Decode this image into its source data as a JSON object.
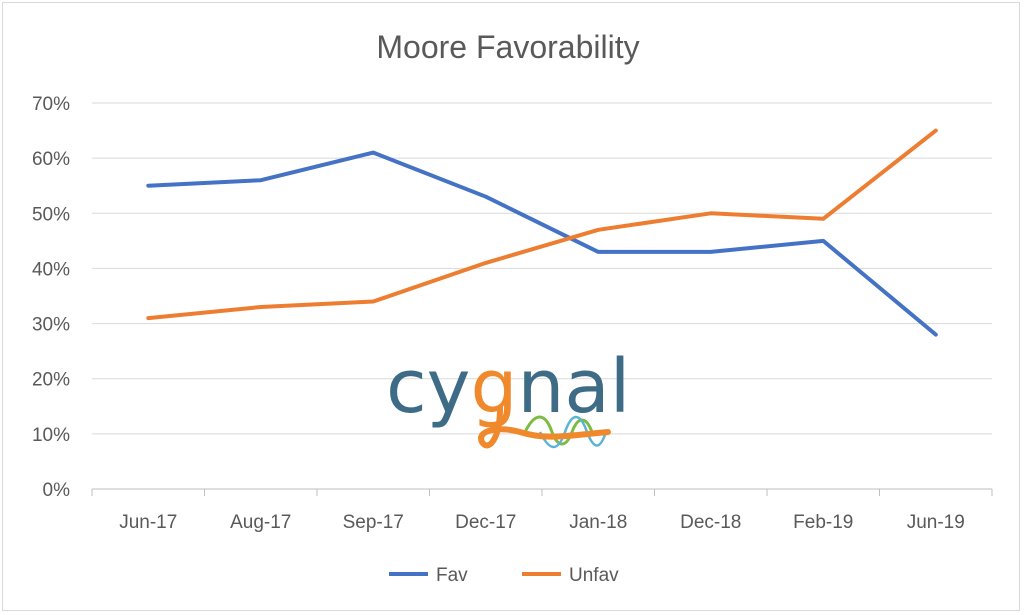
{
  "chart_data": {
    "type": "line",
    "title": "Moore Favorability",
    "categories": [
      "Jun-17",
      "Aug-17",
      "Sep-17",
      "Dec-17",
      "Jan-18",
      "Dec-18",
      "Feb-19",
      "Jun-19"
    ],
    "yticks": [
      "0%",
      "10%",
      "20%",
      "30%",
      "40%",
      "50%",
      "60%",
      "70%"
    ],
    "ylim": [
      0,
      70
    ],
    "grid": true,
    "legend_position": "bottom",
    "series": [
      {
        "name": "Fav",
        "color": "#4472C4",
        "values": [
          55,
          56,
          61,
          53,
          43,
          43,
          45,
          28
        ]
      },
      {
        "name": "Unfav",
        "color": "#ED7D31",
        "values": [
          31,
          33,
          34,
          41,
          47,
          50,
          49,
          65
        ]
      }
    ]
  },
  "logo": {
    "text_cy": "cy",
    "text_g": "g",
    "text_nal": "nal",
    "color_primary": "#3E6C86",
    "color_accent": "#F0892B",
    "color_wave_green": "#7DBB42",
    "color_wave_blue": "#5AB4D6"
  }
}
